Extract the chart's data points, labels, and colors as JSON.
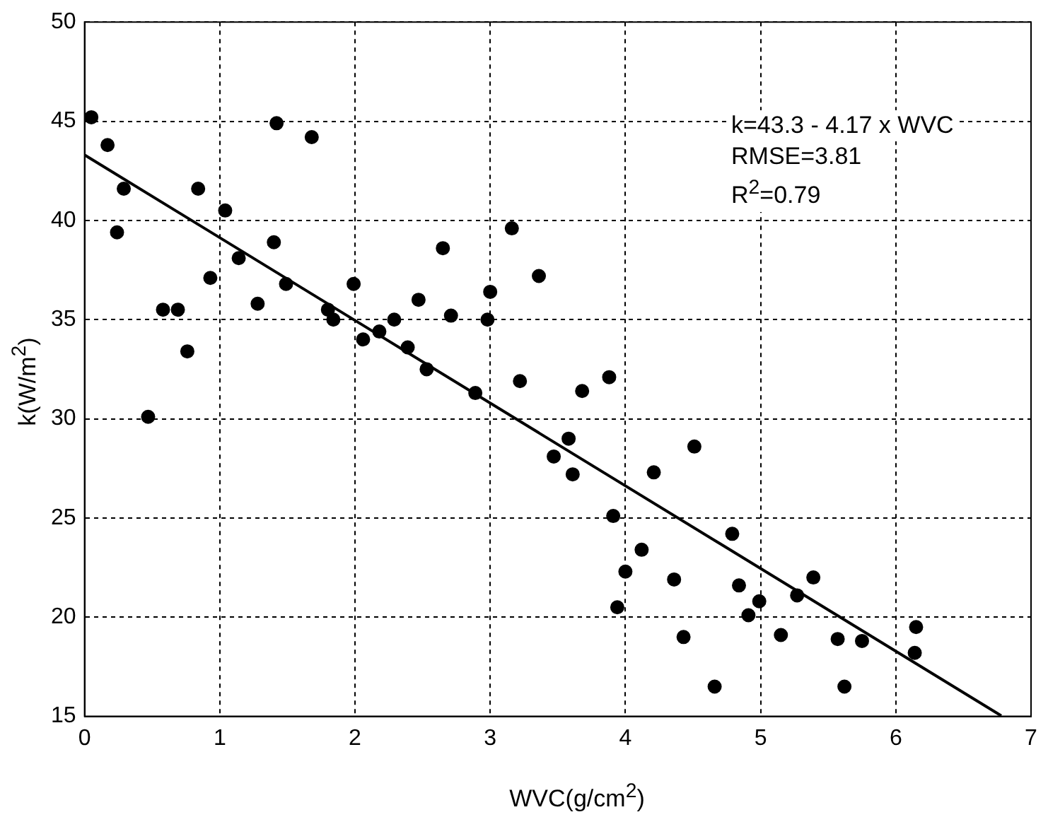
{
  "chart_data": {
    "type": "scatter",
    "xlabel": "WVC(g/cm$^{2}$)",
    "ylabel": "k(W/m$^{2}$)",
    "annotations": [
      "k=43.3 - 4.17 x WVC",
      "RMSE=3.81",
      "R$^{2}$=0.79"
    ],
    "xlim": [
      0,
      7
    ],
    "xticks": [
      0,
      1,
      2,
      3,
      4,
      5,
      6,
      7
    ],
    "ylim": [
      15,
      50
    ],
    "yticks": [
      15,
      20,
      25,
      30,
      35,
      40,
      45,
      50
    ],
    "grid": true,
    "series": [
      {
        "marker": "circle",
        "color": "#000000",
        "x": [
          0.05,
          0.17,
          0.24,
          0.29,
          0.47,
          0.58,
          0.69,
          0.76,
          0.84,
          0.93,
          1.04,
          1.14,
          1.28,
          1.4,
          1.42,
          1.49,
          1.68,
          1.8,
          1.84,
          1.99,
          2.06,
          2.18,
          2.29,
          2.39,
          2.47,
          2.53,
          2.65,
          2.71,
          2.89,
          2.98,
          3.0,
          3.16,
          3.22,
          3.36,
          3.47,
          3.58,
          3.61,
          3.68,
          3.88,
          3.91,
          3.94,
          4.0,
          4.12,
          4.21,
          4.36,
          4.43,
          4.51,
          4.66,
          4.79,
          4.84,
          4.91,
          4.99,
          5.15,
          5.27,
          5.39,
          5.57,
          5.62,
          5.75,
          6.14,
          6.15
        ],
        "values": [
          45.2,
          43.8,
          39.4,
          41.6,
          30.1,
          35.5,
          35.5,
          33.4,
          41.6,
          37.1,
          40.5,
          38.1,
          35.8,
          38.9,
          44.9,
          36.8,
          44.2,
          35.5,
          35.0,
          36.8,
          34.0,
          34.4,
          35.0,
          33.6,
          36.0,
          32.5,
          38.6,
          35.2,
          31.3,
          35.0,
          36.4,
          39.6,
          31.9,
          37.2,
          28.1,
          29.0,
          27.2,
          31.4,
          32.1,
          25.1,
          20.5,
          22.3,
          23.4,
          27.3,
          21.9,
          19.0,
          28.6,
          16.5,
          24.2,
          21.6,
          20.1,
          20.8,
          19.1,
          21.1,
          22.0,
          18.9,
          16.5,
          18.8,
          18.2,
          19.5
        ]
      },
      {
        "type": "line",
        "marker": "none",
        "color": "#000000",
        "x": [
          0,
          6.78
        ],
        "values": [
          43.3,
          15.03
        ]
      }
    ]
  }
}
